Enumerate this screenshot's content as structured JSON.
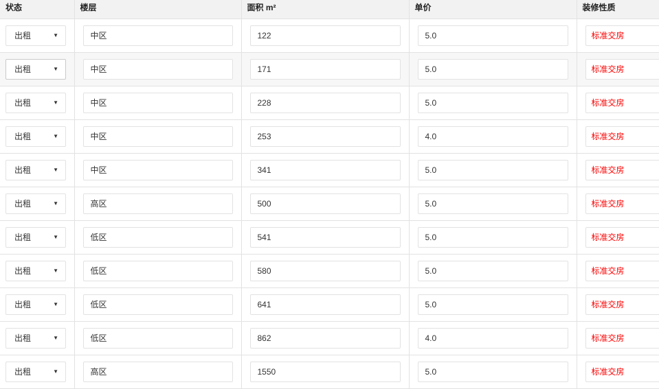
{
  "columns": [
    "状态",
    "楼层",
    "面积 m²",
    "单价",
    "装修性质"
  ],
  "rows": [
    {
      "status": "出租",
      "floor": "中区",
      "area": "122",
      "price": "5.0",
      "decor": "标准交房"
    },
    {
      "status": "出租",
      "floor": "中区",
      "area": "171",
      "price": "5.0",
      "decor": "标准交房"
    },
    {
      "status": "出租",
      "floor": "中区",
      "area": "228",
      "price": "5.0",
      "decor": "标准交房"
    },
    {
      "status": "出租",
      "floor": "中区",
      "area": "253",
      "price": "4.0",
      "decor": "标准交房"
    },
    {
      "status": "出租",
      "floor": "中区",
      "area": "341",
      "price": "5.0",
      "decor": "标准交房"
    },
    {
      "status": "出租",
      "floor": "高区",
      "area": "500",
      "price": "5.0",
      "decor": "标准交房"
    },
    {
      "status": "出租",
      "floor": "低区",
      "area": "541",
      "price": "5.0",
      "decor": "标准交房"
    },
    {
      "status": "出租",
      "floor": "低区",
      "area": "580",
      "price": "5.0",
      "decor": "标准交房"
    },
    {
      "status": "出租",
      "floor": "低区",
      "area": "641",
      "price": "5.0",
      "decor": "标准交房"
    },
    {
      "status": "出租",
      "floor": "低区",
      "area": "862",
      "price": "4.0",
      "decor": "标准交房"
    },
    {
      "status": "出租",
      "floor": "高区",
      "area": "1550",
      "price": "5.0",
      "decor": "标准交房"
    }
  ],
  "hovered_row": 1,
  "colors": {
    "decor_text": "#ff0000",
    "header_bg": "#f2f2f2"
  }
}
